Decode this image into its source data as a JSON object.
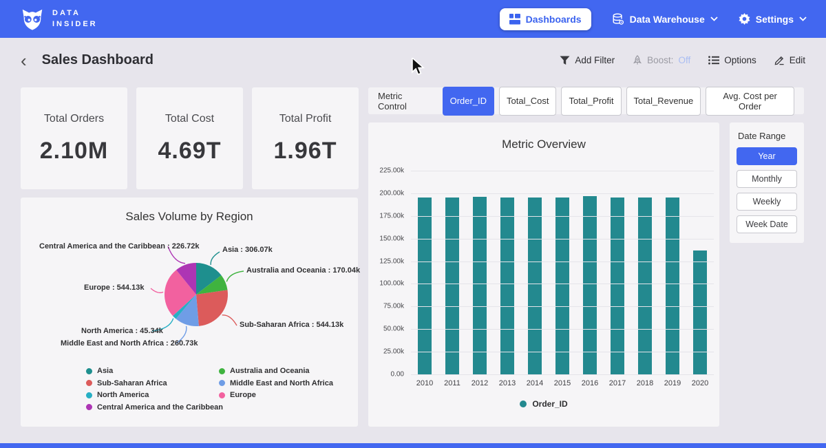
{
  "navbar": {
    "brand_line1": "DATA",
    "brand_line2": "INSIDER",
    "dashboards_label": "Dashboards",
    "data_warehouse_label": "Data Warehouse",
    "settings_label": "Settings"
  },
  "header": {
    "title": "Sales Dashboard",
    "add_filter_label": "Add Filter",
    "boost_label": "Boost:",
    "boost_state": "Off",
    "options_label": "Options",
    "edit_label": "Edit"
  },
  "kpis": [
    {
      "label": "Total Orders",
      "value": "2.10M"
    },
    {
      "label": "Total Cost",
      "value": "4.69T"
    },
    {
      "label": "Total Profit",
      "value": "1.96T"
    }
  ],
  "metric_control": {
    "label": "Metric Control",
    "buttons": [
      "Order_ID",
      "Total_Cost",
      "Total_Profit",
      "Total_Revenue",
      "Avg. Cost per Order"
    ],
    "selected": "Order_ID"
  },
  "date_range": {
    "label": "Date Range",
    "options": [
      "Year",
      "Monthly",
      "Weekly",
      "Week Date"
    ],
    "selected": "Year"
  },
  "colors": {
    "navbar_blue": "#4267f0",
    "selected_blue": "#4267f0",
    "bar_teal": "#23898f",
    "page_bg": "#e7e5ec",
    "card_bg": "#f6f5f7",
    "boost_off": "#a9bdf3"
  },
  "chart_data": [
    {
      "type": "pie",
      "title": "Sales Volume by Region",
      "slices": [
        {
          "name": "Asia",
          "value": 306070,
          "label": "Asia : 306.07k",
          "color": "#1e8f8e"
        },
        {
          "name": "Australia and Oceania",
          "value": 170040,
          "label": "Australia and Oceania : 170.04k",
          "color": "#3fb33f"
        },
        {
          "name": "Sub-Saharan Africa",
          "value": 544130,
          "label": "Sub-Saharan Africa : 544.13k",
          "color": "#dc5b5b"
        },
        {
          "name": "Middle East and North Africa",
          "value": 260730,
          "label": "Middle East and North Africa : 260.73k",
          "color": "#6f9de6"
        },
        {
          "name": "North America",
          "value": 45340,
          "label": "North America : 45.34k",
          "color": "#27afc4"
        },
        {
          "name": "Europe",
          "value": 544130,
          "label": "Europe : 544.13k",
          "color": "#f2619f"
        },
        {
          "name": "Central America and the Caribbean",
          "value": 226720,
          "label": "Central America and the Caribbean : 226.72k",
          "color": "#ad35b4"
        }
      ],
      "legend_position": "bottom"
    },
    {
      "type": "bar",
      "title": "Metric Overview",
      "categories": [
        "2010",
        "2011",
        "2012",
        "2013",
        "2014",
        "2015",
        "2016",
        "2017",
        "2018",
        "2019",
        "2020"
      ],
      "values": [
        195500,
        195400,
        196500,
        195300,
        195400,
        195300,
        196600,
        195400,
        195500,
        195600,
        136500
      ],
      "series_name": "Order_ID",
      "bar_color": "#23898f",
      "ylim": [
        0,
        225000
      ],
      "yticks": [
        "225.00k",
        "200.00k",
        "175.00k",
        "150.00k",
        "125.00k",
        "100.00k",
        "75.00k",
        "50.00k",
        "25.00k",
        "0.00"
      ],
      "grid": true,
      "legend_position": "bottom"
    }
  ]
}
